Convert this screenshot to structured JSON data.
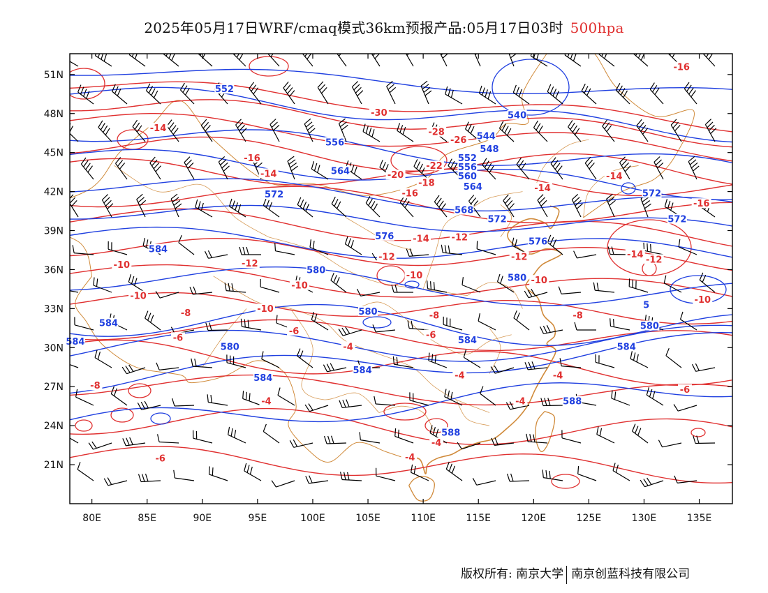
{
  "title": {
    "main": "2025年05月17日WRF/cmaq模式36km预报产品:05月17日03时",
    "level": "500hpa"
  },
  "axes": {
    "lat_labels": [
      "51N",
      "48N",
      "45N",
      "42N",
      "39N",
      "36N",
      "33N",
      "30N",
      "27N",
      "24N",
      "21N"
    ],
    "lon_labels": [
      "80E",
      "85E",
      "90E",
      "95E",
      "100E",
      "105E",
      "110E",
      "115E",
      "120E",
      "125E",
      "130E",
      "135E"
    ]
  },
  "legend": {
    "height_color": "#2040e0",
    "temperature_color": "#e03030",
    "boundary_color": "#d08a3a",
    "wind_color": "#000000"
  },
  "height_labels": [
    {
      "text": "552",
      "lon": 92,
      "lat": 49.8
    },
    {
      "text": "540",
      "lon": 118.5,
      "lat": 47.8
    },
    {
      "text": "556",
      "lon": 102,
      "lat": 45.7
    },
    {
      "text": "544",
      "lon": 115.7,
      "lat": 46.2
    },
    {
      "text": "548",
      "lon": 116,
      "lat": 45.2
    },
    {
      "text": "552",
      "lon": 114,
      "lat": 44.5
    },
    {
      "text": "556",
      "lon": 114,
      "lat": 43.8
    },
    {
      "text": "560",
      "lon": 114,
      "lat": 43.1
    },
    {
      "text": "564",
      "lon": 102.5,
      "lat": 43.5
    },
    {
      "text": "564",
      "lon": 114.5,
      "lat": 42.3
    },
    {
      "text": "568",
      "lon": 113.7,
      "lat": 40.5
    },
    {
      "text": "572",
      "lon": 96.5,
      "lat": 41.7
    },
    {
      "text": "572",
      "lon": 116.7,
      "lat": 39.8
    },
    {
      "text": "572",
      "lon": 130.7,
      "lat": 41.8
    },
    {
      "text": "572",
      "lon": 133,
      "lat": 39.8
    },
    {
      "text": "576",
      "lon": 106.5,
      "lat": 38.5
    },
    {
      "text": "576",
      "lon": 120.4,
      "lat": 38.1
    },
    {
      "text": "584",
      "lon": 86,
      "lat": 37.5
    },
    {
      "text": "580",
      "lon": 100.3,
      "lat": 35.9
    },
    {
      "text": "580",
      "lon": 118.5,
      "lat": 35.3
    },
    {
      "text": "580",
      "lon": 105,
      "lat": 32.7
    },
    {
      "text": "584",
      "lon": 81.5,
      "lat": 31.8
    },
    {
      "text": "584",
      "lon": 78.5,
      "lat": 30.4
    },
    {
      "text": "580",
      "lon": 92.5,
      "lat": 30.0
    },
    {
      "text": "584",
      "lon": 114,
      "lat": 30.5
    },
    {
      "text": "584",
      "lon": 104.5,
      "lat": 28.2
    },
    {
      "text": "584",
      "lon": 95.5,
      "lat": 27.6
    },
    {
      "text": "580",
      "lon": 130.5,
      "lat": 31.6
    },
    {
      "text": "584",
      "lon": 128.4,
      "lat": 30.0
    },
    {
      "text": "588",
      "lon": 123.5,
      "lat": 25.8
    },
    {
      "text": "588",
      "lon": 112.5,
      "lat": 23.4
    },
    {
      "text": "5",
      "lon": 130.2,
      "lat": 33.2
    }
  ],
  "temperature_labels": [
    {
      "text": "-14",
      "lon": 86,
      "lat": 46.8
    },
    {
      "text": "-30",
      "lon": 106,
      "lat": 48.0
    },
    {
      "text": "-28",
      "lon": 111.2,
      "lat": 46.5
    },
    {
      "text": "-26",
      "lon": 113.2,
      "lat": 45.9
    },
    {
      "text": "-16",
      "lon": 94.5,
      "lat": 44.5
    },
    {
      "text": "-14",
      "lon": 96,
      "lat": 43.3
    },
    {
      "text": "-22",
      "lon": 111,
      "lat": 43.9
    },
    {
      "text": "-20",
      "lon": 107.5,
      "lat": 43.2
    },
    {
      "text": "-18",
      "lon": 110.3,
      "lat": 42.6
    },
    {
      "text": "-16",
      "lon": 108.8,
      "lat": 41.8
    },
    {
      "text": "-14",
      "lon": 127.3,
      "lat": 43.1
    },
    {
      "text": "-14",
      "lon": 120.8,
      "lat": 42.2
    },
    {
      "text": "-16",
      "lon": 135.2,
      "lat": 41.0
    },
    {
      "text": "-14",
      "lon": 109.8,
      "lat": 38.3
    },
    {
      "text": "-12",
      "lon": 113.3,
      "lat": 38.4
    },
    {
      "text": "-12",
      "lon": 106.7,
      "lat": 36.9
    },
    {
      "text": "-12",
      "lon": 118.7,
      "lat": 36.9
    },
    {
      "text": "-14",
      "lon": 129.2,
      "lat": 37.1
    },
    {
      "text": "-12",
      "lon": 130.9,
      "lat": 36.7
    },
    {
      "text": "-10",
      "lon": 82.7,
      "lat": 36.3
    },
    {
      "text": "-12",
      "lon": 94.3,
      "lat": 36.4
    },
    {
      "text": "-10",
      "lon": 109.2,
      "lat": 35.5
    },
    {
      "text": "-10",
      "lon": 120.5,
      "lat": 35.1
    },
    {
      "text": "-10",
      "lon": 84.2,
      "lat": 33.9
    },
    {
      "text": "-10",
      "lon": 98.8,
      "lat": 34.7
    },
    {
      "text": "-10",
      "lon": 95.7,
      "lat": 32.9
    },
    {
      "text": "-10",
      "lon": 135.3,
      "lat": 33.6
    },
    {
      "text": "-8",
      "lon": 88.5,
      "lat": 32.6
    },
    {
      "text": "-8",
      "lon": 111,
      "lat": 32.4
    },
    {
      "text": "-8",
      "lon": 124,
      "lat": 32.4
    },
    {
      "text": "-6",
      "lon": 87.8,
      "lat": 30.7
    },
    {
      "text": "-6",
      "lon": 98.3,
      "lat": 31.2
    },
    {
      "text": "-6",
      "lon": 110.7,
      "lat": 30.9
    },
    {
      "text": "-4",
      "lon": 103.2,
      "lat": 30.0
    },
    {
      "text": "-8",
      "lon": 80.3,
      "lat": 27.0
    },
    {
      "text": "-4",
      "lon": 113.3,
      "lat": 27.8
    },
    {
      "text": "-4",
      "lon": 122.2,
      "lat": 27.8
    },
    {
      "text": "-4",
      "lon": 95.8,
      "lat": 25.8
    },
    {
      "text": "-4",
      "lon": 118.8,
      "lat": 25.8
    },
    {
      "text": "-6",
      "lon": 133.7,
      "lat": 26.7
    },
    {
      "text": "-4",
      "lon": 111.2,
      "lat": 22.6
    },
    {
      "text": "-4",
      "lon": 108.8,
      "lat": 21.5
    },
    {
      "text": "-6",
      "lon": 86.2,
      "lat": 21.4
    },
    {
      "text": "-16",
      "lon": 133.4,
      "lat": 51.5
    }
  ],
  "footer": {
    "copyright": "版权所有: 南京大学",
    "company": "南京创蓝科技有限公司"
  }
}
